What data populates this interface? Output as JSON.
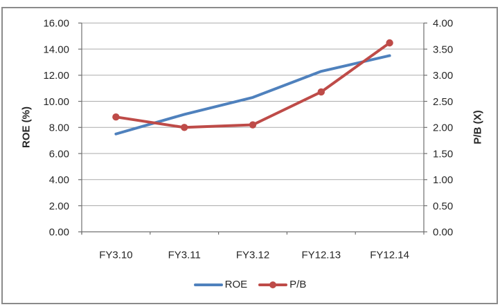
{
  "frame": {
    "border_color": "#8a8a8a"
  },
  "chart_data": {
    "type": "line",
    "title": "",
    "categories": [
      "FY3.10",
      "FY3.11",
      "FY3.12",
      "FY12.13",
      "FY12.14"
    ],
    "series": [
      {
        "name": "ROE",
        "axis": "left",
        "color": "#4F81BD",
        "marker": "none",
        "values": [
          7.5,
          9.0,
          10.3,
          12.3,
          13.5
        ]
      },
      {
        "name": "P/B",
        "axis": "right",
        "color": "#BE4B48",
        "marker": "circle",
        "values": [
          2.2,
          2.0,
          2.05,
          2.68,
          3.62
        ]
      }
    ],
    "ylabel_left": "ROE (%)",
    "ylabel_right": "P/B (X)",
    "ylim_left": [
      0,
      16
    ],
    "ylim_right": [
      0,
      4
    ],
    "yticks_left": [
      "16.00",
      "14.00",
      "12.00",
      "10.00",
      "8.00",
      "6.00",
      "4.00",
      "2.00",
      "0.00"
    ],
    "yticks_right": [
      "4.00",
      "3.50",
      "3.00",
      "2.50",
      "2.00",
      "1.50",
      "1.00",
      "0.50",
      "0.00"
    ],
    "grid": true,
    "legend_position": "bottom",
    "colors": {
      "grid_line": "#ababab",
      "axis_line": "#6e6e6e",
      "text": "#262626"
    }
  }
}
